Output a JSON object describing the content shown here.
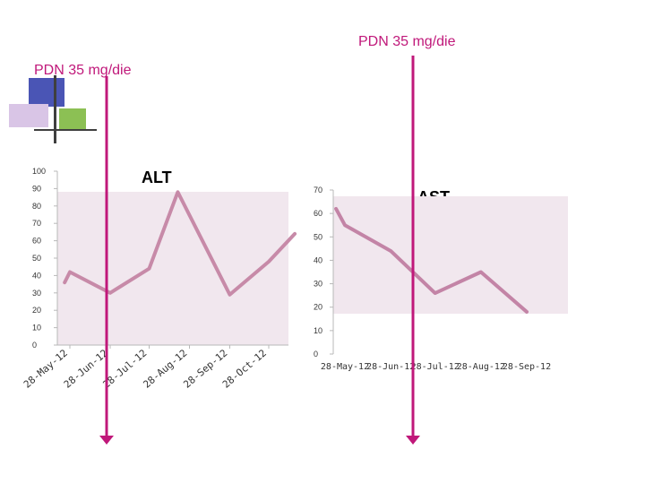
{
  "annotations": {
    "pdn_top": "PDN 35 mg/die",
    "pdn_left": "PDN  35 mg/die"
  },
  "colors": {
    "accent": "#c0187a",
    "series_alt": "#c78aa8",
    "series_ast": "#c384a6",
    "plot_bg": "#f1e7ee",
    "deco_blue": "#4a55b5",
    "deco_lilac": "#d9c5e6",
    "deco_green": "#8cc054"
  },
  "chart_data": [
    {
      "type": "line",
      "title": "ALT",
      "categories": [
        "28-May-12",
        "28-Jun-12",
        "28-Jul-12",
        "28-Aug-12",
        "28-Sep-12",
        "28-Oct-12"
      ],
      "x": [
        "24-May-12",
        "28-May-12",
        "28-Jun-12",
        "28-Jul-12",
        "19-Aug-12",
        "28-Sep-12",
        "28-Oct-12",
        "17-Nov-12"
      ],
      "series": [
        {
          "values": [
            36,
            42,
            30,
            44,
            88,
            29,
            48,
            64
          ]
        }
      ],
      "ylim": [
        0,
        100
      ],
      "yticks": [
        0,
        10,
        20,
        30,
        40,
        50,
        60,
        70,
        80,
        90,
        100
      ],
      "grid": false
    },
    {
      "type": "line",
      "title": "AST",
      "categories": [
        "28-May-12",
        "28-Jun-12",
        "28-Jul-12",
        "28-Aug-12",
        "28-Sep-12"
      ],
      "x": [
        "22-May-12",
        "28-May-12",
        "28-Jun-12",
        "28-Jul-12",
        "28-Aug-12",
        "28-Sep-12"
      ],
      "series": [
        {
          "values": [
            62,
            55,
            44,
            26,
            35,
            18
          ]
        }
      ],
      "ylim": [
        0,
        70
      ],
      "yticks": [
        0,
        10,
        20,
        30,
        40,
        50,
        60,
        70
      ],
      "grid": false
    }
  ]
}
